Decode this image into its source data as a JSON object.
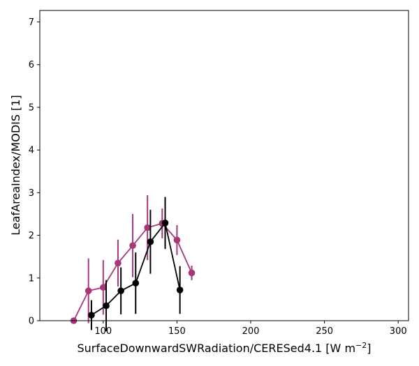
{
  "chart_data": {
    "type": "line",
    "xlabel": "SurfaceDownwardSWRadiation/CERESed4.1 [W m",
    "xlabel_unit_exponent": "−2",
    "xlabel_close": "]",
    "ylabel": "LeafAreaIndex/MODIS [1]",
    "xlim": [
      57,
      307
    ],
    "ylim": [
      0,
      7.27
    ],
    "xticks": [
      100,
      150,
      200,
      250,
      300
    ],
    "yticks": [
      0,
      1,
      2,
      3,
      4,
      5,
      6,
      7
    ],
    "grid": false,
    "series": [
      {
        "color": "#a8377a",
        "points": [
          {
            "x": 80,
            "y": 0.0,
            "err": 0.0
          },
          {
            "x": 90,
            "y": 0.7,
            "err": 0.76
          },
          {
            "x": 100,
            "y": 0.78,
            "err": 0.64
          },
          {
            "x": 110,
            "y": 1.35,
            "err": 0.55
          },
          {
            "x": 120,
            "y": 1.76,
            "err": 0.74
          },
          {
            "x": 130,
            "y": 2.18,
            "err": 0.76
          },
          {
            "x": 140,
            "y": 2.28,
            "err": 0.35
          },
          {
            "x": 150,
            "y": 1.89,
            "err": 0.35
          },
          {
            "x": 160,
            "y": 1.12,
            "err": 0.17
          }
        ]
      },
      {
        "color": "#000000",
        "points": [
          {
            "x": 92,
            "y": 0.13,
            "err": 0.35
          },
          {
            "x": 102,
            "y": 0.35,
            "err": 0.6
          },
          {
            "x": 112,
            "y": 0.7,
            "err": 0.55
          },
          {
            "x": 122,
            "y": 0.88,
            "err": 0.72
          },
          {
            "x": 132,
            "y": 1.85,
            "err": 0.75
          },
          {
            "x": 142,
            "y": 2.29,
            "err": 0.61
          },
          {
            "x": 152,
            "y": 0.72,
            "err": 0.56
          }
        ]
      }
    ]
  }
}
